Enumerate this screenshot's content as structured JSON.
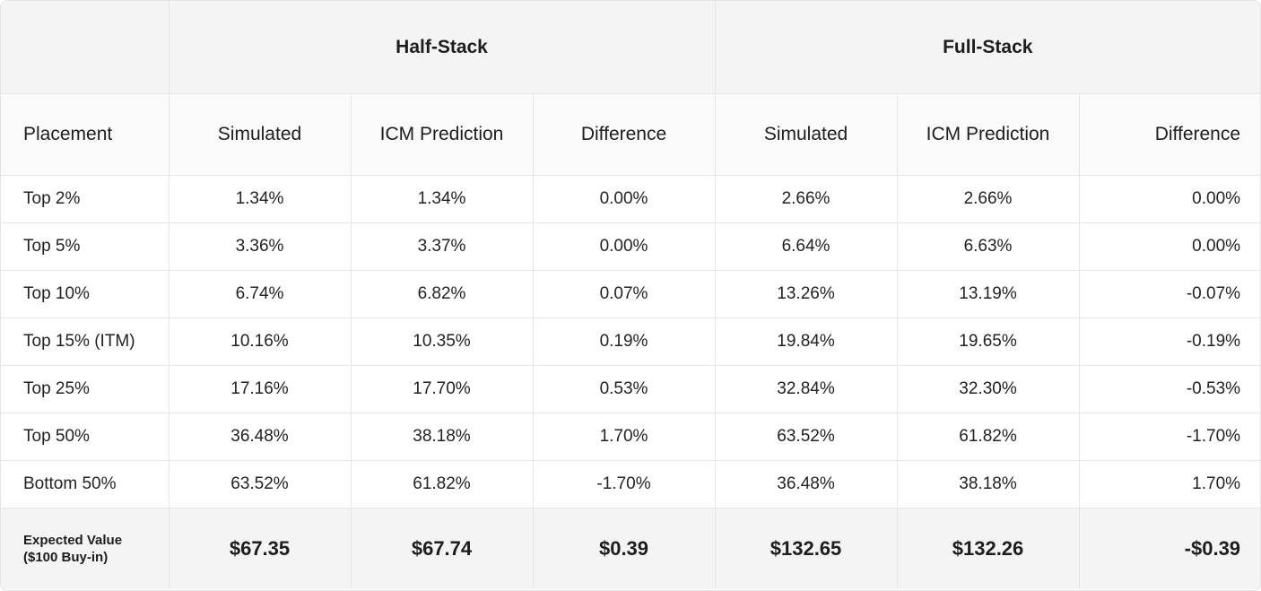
{
  "groups": {
    "half_stack": "Half-Stack",
    "full_stack": "Full-Stack"
  },
  "headers": {
    "placement": "Placement",
    "half": {
      "simulated": "Simulated",
      "icm": "ICM Prediction",
      "difference": "Difference"
    },
    "full": {
      "simulated": "Simulated",
      "icm": "ICM Prediction",
      "difference": "Difference"
    }
  },
  "rows": [
    {
      "placement": "Top 2%",
      "half_sim": "1.34%",
      "half_icm": "1.34%",
      "half_diff": "0.00%",
      "full_sim": "2.66%",
      "full_icm": "2.66%",
      "full_diff": "0.00%"
    },
    {
      "placement": "Top 5%",
      "half_sim": "3.36%",
      "half_icm": "3.37%",
      "half_diff": "0.00%",
      "full_sim": "6.64%",
      "full_icm": "6.63%",
      "full_diff": "0.00%"
    },
    {
      "placement": "Top 10%",
      "half_sim": "6.74%",
      "half_icm": "6.82%",
      "half_diff": "0.07%",
      "full_sim": "13.26%",
      "full_icm": "13.19%",
      "full_diff": "-0.07%"
    },
    {
      "placement": "Top 15% (ITM)",
      "half_sim": "10.16%",
      "half_icm": "10.35%",
      "half_diff": "0.19%",
      "full_sim": "19.84%",
      "full_icm": "19.65%",
      "full_diff": "-0.19%"
    },
    {
      "placement": "Top 25%",
      "half_sim": "17.16%",
      "half_icm": "17.70%",
      "half_diff": "0.53%",
      "full_sim": "32.84%",
      "full_icm": "32.30%",
      "full_diff": "-0.53%"
    },
    {
      "placement": "Top 50%",
      "half_sim": "36.48%",
      "half_icm": "38.18%",
      "half_diff": "1.70%",
      "full_sim": "63.52%",
      "full_icm": "61.82%",
      "full_diff": "-1.70%"
    },
    {
      "placement": "Bottom 50%",
      "half_sim": "63.52%",
      "half_icm": "61.82%",
      "half_diff": "-1.70%",
      "full_sim": "36.48%",
      "full_icm": "38.18%",
      "full_diff": "1.70%"
    }
  ],
  "expected_value": {
    "label_line1": "Expected Value",
    "label_line2": "($100 Buy-in)",
    "half_sim": "$67.35",
    "half_icm": "$67.74",
    "half_diff": "$0.39",
    "full_sim": "$132.65",
    "full_icm": "$132.26",
    "full_diff": "-$0.39"
  }
}
